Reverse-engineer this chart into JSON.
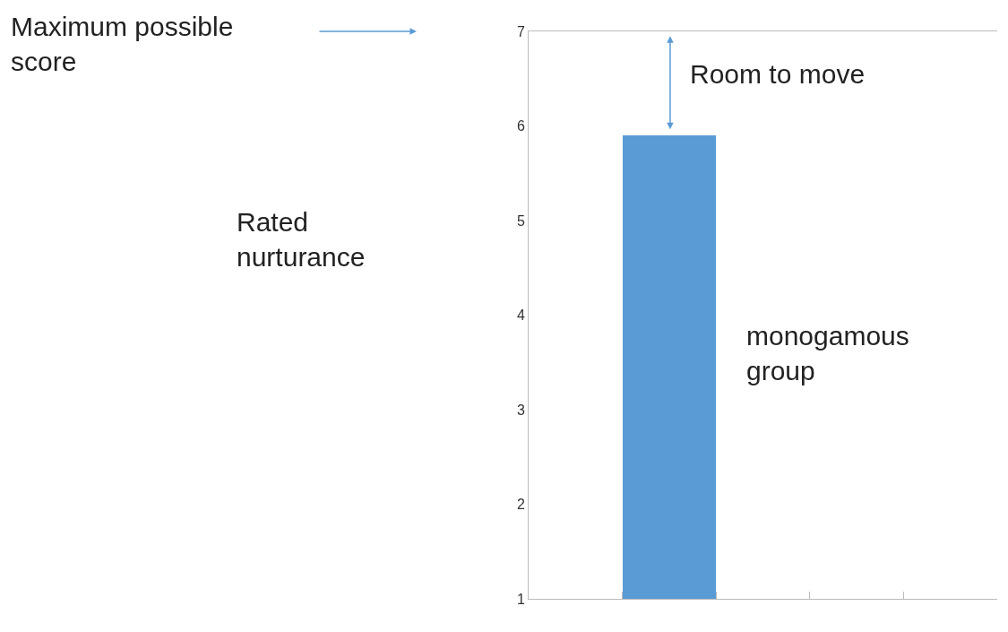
{
  "chart_data": {
    "type": "bar",
    "categories": [
      null,
      null,
      null,
      null,
      null
    ],
    "series": [
      {
        "name": "monogamous group",
        "color": "#5b9bd5",
        "values": [
          null,
          5.9,
          null,
          null,
          null
        ]
      }
    ],
    "ylim": [
      1,
      7
    ],
    "yticks": [
      1,
      2,
      3,
      4,
      5,
      6,
      7
    ],
    "grid": false,
    "legend": false,
    "tick_labels": "y",
    "annotations": [
      "Maximum possible score",
      "Room to move",
      "Rated nurturance"
    ]
  }
}
